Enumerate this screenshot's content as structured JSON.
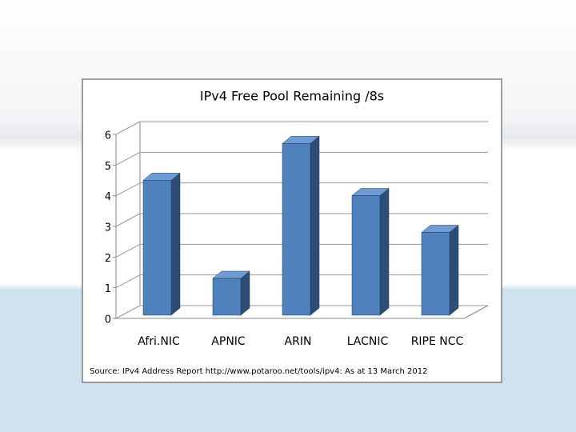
{
  "chart_data": {
    "type": "bar3d",
    "title": "IPv4 Free Pool Remaining /8s",
    "categories": [
      "Afri.NIC",
      "APNIC",
      "ARIN",
      "LACNIC",
      "RIPE NCC"
    ],
    "values": [
      4.4,
      1.2,
      5.6,
      3.9,
      2.7
    ],
    "color": "#4f81bd",
    "ylim": [
      0,
      6
    ],
    "yticks": [
      0,
      1,
      2,
      3,
      4,
      5,
      6
    ],
    "grid": true,
    "source": "Source: IPv4 Address Report http://www.potaroo.net/tools/ipv4: As at 13 March 2012"
  }
}
